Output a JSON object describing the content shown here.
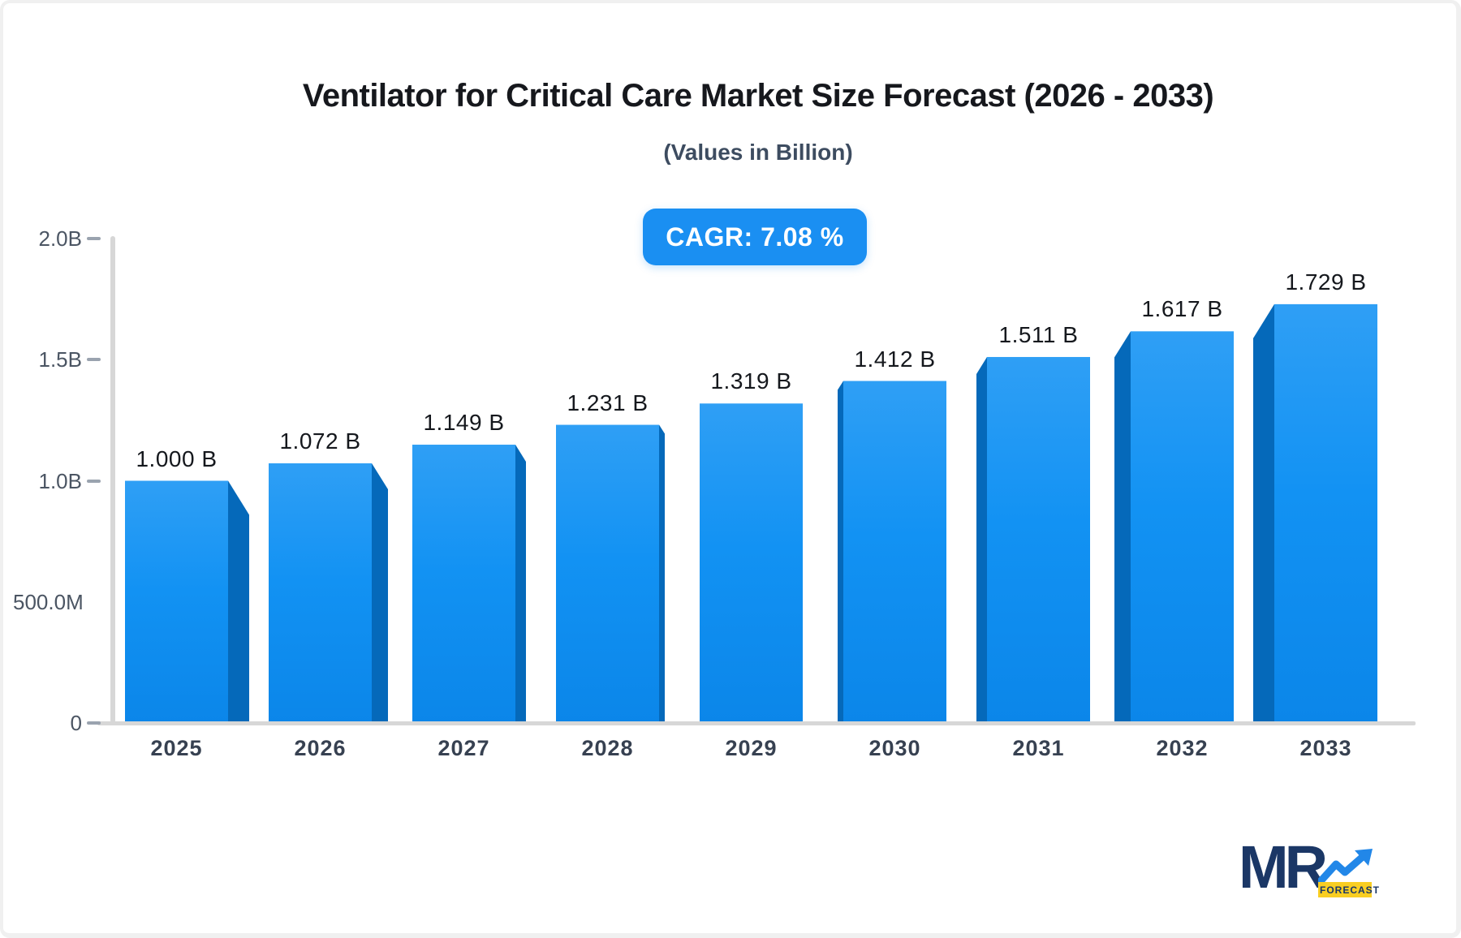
{
  "header": {
    "title": "Ventilator for Critical Care Market Size Forecast (2026 - 2033)",
    "subtitle": "(Values in Billion)",
    "cagr_label": "CAGR: 7.08 %"
  },
  "chart_data": {
    "type": "bar",
    "title": "Ventilator for Critical Care Market Size Forecast (2026 - 2033)",
    "subtitle": "(Values in Billion)",
    "cagr": "7.08 %",
    "categories": [
      "2025",
      "2026",
      "2027",
      "2028",
      "2029",
      "2030",
      "2031",
      "2032",
      "2033"
    ],
    "values": [
      1.0,
      1.072,
      1.149,
      1.231,
      1.319,
      1.412,
      1.511,
      1.617,
      1.729
    ],
    "value_labels": [
      "1.000 B",
      "1.072 B",
      "1.149 B",
      "1.231 B",
      "1.319 B",
      "1.412 B",
      "1.511 B",
      "1.617 B",
      "1.729 B"
    ],
    "unit_suffix": "B",
    "xlabel": "",
    "ylabel": "",
    "ylim": [
      0,
      2.0
    ],
    "y_ticks": [
      {
        "label": "2.0B",
        "value": 2.0,
        "has_tick": true
      },
      {
        "label": "1.5B",
        "value": 1.5,
        "has_tick": true
      },
      {
        "label": "1.0B",
        "value": 1.0,
        "has_tick": true
      },
      {
        "label": "500.0M",
        "value": 0.5,
        "has_tick": false
      },
      {
        "label": "0",
        "value": 0.0,
        "has_tick": true
      }
    ],
    "grid": false,
    "legend": "none",
    "style": "3d-perspective-bars"
  },
  "colors": {
    "bar_front_top": "#2f9ff5",
    "bar_front_mid": "#1292f3",
    "bar_front_bottom": "#0b86e9",
    "bar_side": "#0569ba",
    "badge_bg": "#1a8ff2",
    "badge_text": "#ffffff",
    "title_text": "#16181d",
    "subtitle_text": "#3d4c60",
    "axis_line": "#d7d7d7",
    "tick_dash": "#9aa3af",
    "y_label_text": "#4b5563",
    "x_label_text": "#374151",
    "value_label_text": "#15181d",
    "logo_navy": "#1b3766",
    "logo_blue": "#2287e8",
    "logo_yellow": "#f9ce22"
  },
  "logo": {
    "mr": "MR",
    "forecast": "FORECAST"
  }
}
